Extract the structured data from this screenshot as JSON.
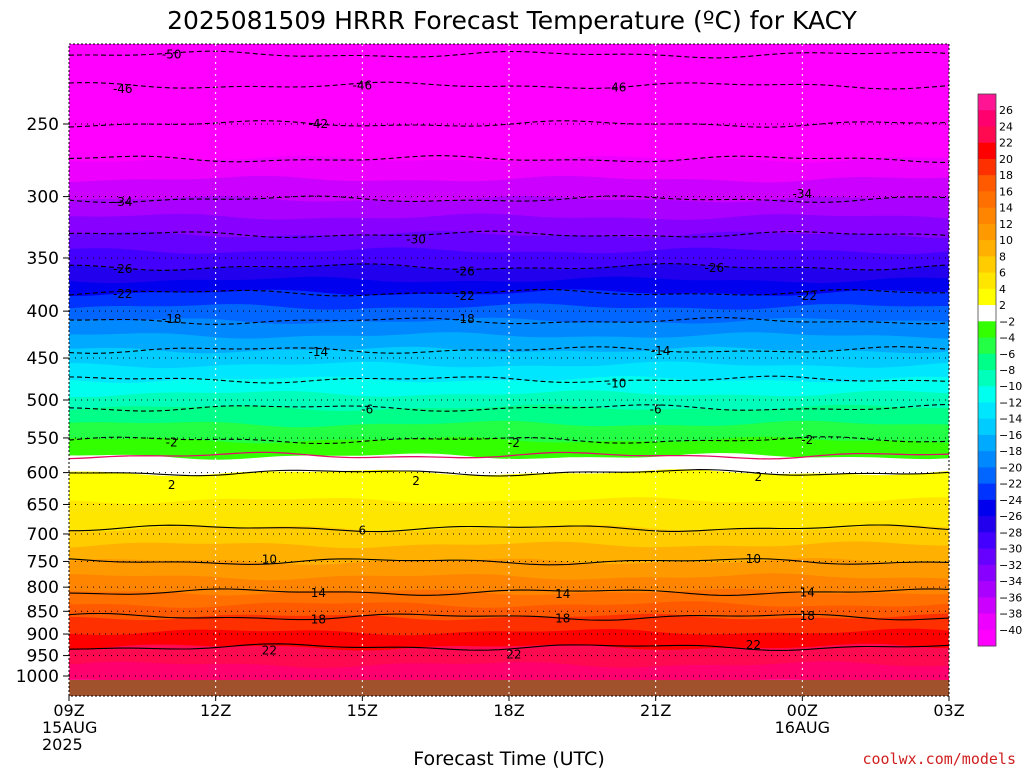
{
  "page": {
    "title": "2025081509 HRRR Forecast Temperature (ºC) for KACY",
    "credit": "coolwx.com/models"
  },
  "chart_data": {
    "type": "heatmap",
    "title": "2025081509 HRRR Forecast Temperature (ºC) for KACY",
    "xlabel": "Forecast Time (UTC)",
    "ylabel": "",
    "y_scale": "log-pressure",
    "y_ticks": [
      250,
      300,
      350,
      400,
      450,
      500,
      550,
      600,
      650,
      700,
      750,
      800,
      850,
      900,
      950,
      1000
    ],
    "ylim": [
      1025,
      200
    ],
    "x_ticks": [
      {
        "hour": 0,
        "lines": [
          "09Z",
          "15AUG",
          "2025"
        ]
      },
      {
        "hour": 3,
        "lines": [
          "12Z"
        ]
      },
      {
        "hour": 6,
        "lines": [
          "15Z"
        ]
      },
      {
        "hour": 9,
        "lines": [
          "18Z"
        ]
      },
      {
        "hour": 12,
        "lines": [
          "21Z"
        ]
      },
      {
        "hour": 15,
        "lines": [
          "00Z",
          "16AUG"
        ]
      },
      {
        "hour": 18,
        "lines": [
          "03Z"
        ]
      }
    ],
    "xlim_hours": [
      0,
      18
    ],
    "grid": true,
    "colorbar": {
      "placement": "right",
      "tick_labels": [
        "26",
        "24",
        "22",
        "20",
        "18",
        "16",
        "14",
        "12",
        "10",
        "8",
        "6",
        "4",
        "2",
        "−2",
        "−4",
        "−6",
        "−8",
        "−10",
        "−12",
        "−14",
        "−16",
        "−18",
        "−20",
        "−22",
        "−24",
        "−26",
        "−28",
        "−30",
        "−32",
        "−34",
        "−36",
        "−38",
        "−40"
      ],
      "colors": [
        "#ff1493",
        "#ff006e",
        "#ff0a50",
        "#ff0000",
        "#ff3000",
        "#ff5a00",
        "#ff7000",
        "#ff8500",
        "#ff9900",
        "#ffb000",
        "#ffcc00",
        "#ffe600",
        "#ffff00",
        "#ffffff",
        "#33ff00",
        "#22ff44",
        "#00ff88",
        "#00ffbb",
        "#00ffee",
        "#00e6ff",
        "#00ccff",
        "#00aaff",
        "#0088ff",
        "#0066ff",
        "#0033ff",
        "#0000ee",
        "#2200ee",
        "#4400ff",
        "#6600ff",
        "#8800ff",
        "#aa00ff",
        "#cc00ff",
        "#ee00ff",
        "#ff00ff"
      ]
    },
    "isotherms": [
      {
        "value": -50,
        "pressure": 210
      },
      {
        "value": -46,
        "pressure": 227
      },
      {
        "value": -42,
        "pressure": 250
      },
      {
        "value": -38,
        "pressure": 273
      },
      {
        "value": -34,
        "pressure": 302
      },
      {
        "value": -30,
        "pressure": 330
      },
      {
        "value": -26,
        "pressure": 358
      },
      {
        "value": -22,
        "pressure": 382
      },
      {
        "value": -18,
        "pressure": 410
      },
      {
        "value": -14,
        "pressure": 441
      },
      {
        "value": -10,
        "pressure": 475
      },
      {
        "value": -6,
        "pressure": 510
      },
      {
        "value": -2,
        "pressure": 553
      },
      {
        "value": 2,
        "pressure": 600
      },
      {
        "value": 6,
        "pressure": 690
      },
      {
        "value": 10,
        "pressure": 750
      },
      {
        "value": 14,
        "pressure": 810
      },
      {
        "value": 18,
        "pressure": 862
      },
      {
        "value": 22,
        "pressure": 930
      }
    ],
    "contour_labels": [
      {
        "value": "-50",
        "hour": 2.1,
        "pressure": 210
      },
      {
        "value": "-46",
        "hour": 1.1,
        "pressure": 229
      },
      {
        "value": "-46",
        "hour": 6.0,
        "pressure": 227
      },
      {
        "value": "-46",
        "hour": 11.2,
        "pressure": 228
      },
      {
        "value": "-42",
        "hour": 5.1,
        "pressure": 250
      },
      {
        "value": "-34",
        "hour": 1.1,
        "pressure": 304
      },
      {
        "value": "-34",
        "hour": 15.0,
        "pressure": 298
      },
      {
        "value": "-30",
        "hour": 7.1,
        "pressure": 334
      },
      {
        "value": "-26",
        "hour": 1.1,
        "pressure": 360
      },
      {
        "value": "-26",
        "hour": 8.1,
        "pressure": 362
      },
      {
        "value": "-26",
        "hour": 13.2,
        "pressure": 359
      },
      {
        "value": "-22",
        "hour": 1.1,
        "pressure": 383
      },
      {
        "value": "-22",
        "hour": 8.1,
        "pressure": 385
      },
      {
        "value": "-22",
        "hour": 15.1,
        "pressure": 385
      },
      {
        "value": "-18",
        "hour": 2.1,
        "pressure": 408
      },
      {
        "value": "-18",
        "hour": 8.1,
        "pressure": 408
      },
      {
        "value": "-14",
        "hour": 5.1,
        "pressure": 443
      },
      {
        "value": "-14",
        "hour": 12.1,
        "pressure": 442
      },
      {
        "value": "-10",
        "hour": 11.2,
        "pressure": 480
      },
      {
        "value": "-6",
        "hour": 6.1,
        "pressure": 512
      },
      {
        "value": "-6",
        "hour": 12.0,
        "pressure": 512
      },
      {
        "value": "-2",
        "hour": 2.1,
        "pressure": 556
      },
      {
        "value": "-2",
        "hour": 9.1,
        "pressure": 557
      },
      {
        "value": "-2",
        "hour": 15.1,
        "pressure": 553
      },
      {
        "value": "2",
        "hour": 2.1,
        "pressure": 619
      },
      {
        "value": "2",
        "hour": 7.1,
        "pressure": 613
      },
      {
        "value": "2",
        "hour": 14.1,
        "pressure": 607
      },
      {
        "value": "6",
        "hour": 6.0,
        "pressure": 694
      },
      {
        "value": "10",
        "hour": 4.1,
        "pressure": 746
      },
      {
        "value": "10",
        "hour": 14.0,
        "pressure": 745
      },
      {
        "value": "14",
        "hour": 5.1,
        "pressure": 812
      },
      {
        "value": "14",
        "hour": 10.1,
        "pressure": 814
      },
      {
        "value": "14",
        "hour": 15.1,
        "pressure": 811
      },
      {
        "value": "18",
        "hour": 5.1,
        "pressure": 868
      },
      {
        "value": "18",
        "hour": 10.1,
        "pressure": 866
      },
      {
        "value": "18",
        "hour": 15.1,
        "pressure": 860
      },
      {
        "value": "22",
        "hour": 4.1,
        "pressure": 938
      },
      {
        "value": "22",
        "hour": 9.1,
        "pressure": 947
      },
      {
        "value": "22",
        "hour": 14.0,
        "pressure": 925
      }
    ]
  }
}
